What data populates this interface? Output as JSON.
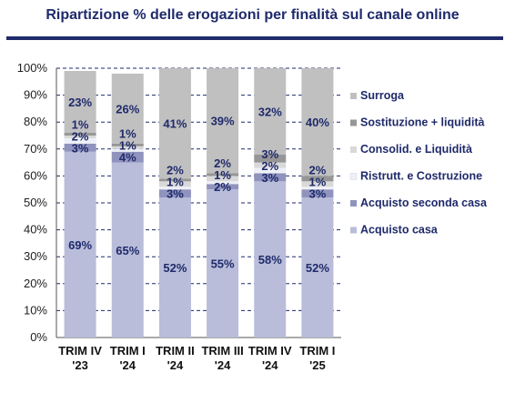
{
  "chart_data": {
    "type": "bar",
    "stacked": true,
    "title": "Ripartizione % delle erogazioni per finalità sul canale online",
    "categories": [
      "TRIM IV '23",
      "TRIM I '24",
      "TRIM II '24",
      "TRIM III '24",
      "TRIM IV '24",
      "TRIM I '25"
    ],
    "category_lines": [
      [
        "TRIM IV",
        "'23"
      ],
      [
        "TRIM I",
        "'24"
      ],
      [
        "TRIM II",
        "'24"
      ],
      [
        "TRIM III",
        "'24"
      ],
      [
        "TRIM IV",
        "'24"
      ],
      [
        "TRIM I",
        "'25"
      ]
    ],
    "ylim": [
      0,
      100
    ],
    "yticks": [
      "0%",
      "10%",
      "20%",
      "30%",
      "40%",
      "50%",
      "60%",
      "70%",
      "80%",
      "90%",
      "100%"
    ],
    "grid": true,
    "legend_position": "right",
    "series": [
      {
        "name": "Acquisto casa",
        "color": "#b9bdd9",
        "values": [
          69,
          65,
          52,
          55,
          58,
          52
        ],
        "labels": [
          "69%",
          "65%",
          "52%",
          "55%",
          "58%",
          "52%"
        ]
      },
      {
        "name": "Acquisto seconda casa",
        "color": "#8f93bd",
        "values": [
          3,
          4,
          3,
          2,
          3,
          3
        ],
        "labels": [
          "3%",
          "4%",
          "3%",
          "2%",
          "3%",
          "3%"
        ]
      },
      {
        "name": "Ristrutt. e Costruzione",
        "color": "#eef0f7",
        "values": [
          2,
          1,
          1,
          1,
          2,
          1
        ],
        "labels": [
          "2%",
          "1%",
          "1%",
          "1%",
          "2%",
          "1%"
        ]
      },
      {
        "name": "Consolid. e Liquidità",
        "color": "#d9d9d9",
        "values": [
          1,
          1,
          2,
          2,
          2,
          2
        ],
        "labels": [
          "",
          "",
          "2%",
          "2%",
          "",
          "2%"
        ]
      },
      {
        "name": "Sostituzione + liquidità",
        "color": "#969696",
        "values": [
          1,
          1,
          1,
          1,
          3,
          2
        ],
        "labels": [
          "1%",
          "1%",
          "",
          "",
          "3%",
          ""
        ]
      },
      {
        "name": "Surroga",
        "color": "#c0c0c0",
        "values": [
          23,
          26,
          41,
          39,
          32,
          40
        ],
        "labels": [
          "23%",
          "26%",
          "41%",
          "39%",
          "32%",
          "40%"
        ]
      }
    ]
  }
}
